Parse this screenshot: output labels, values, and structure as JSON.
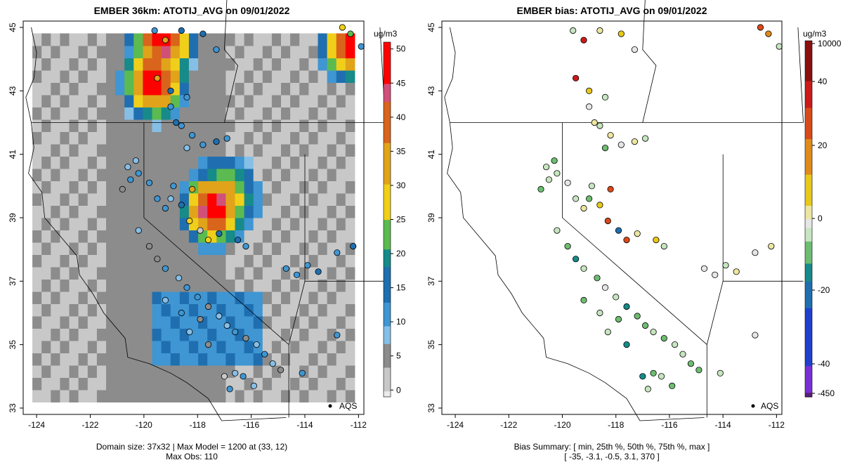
{
  "chart_data": [
    {
      "type": "heatmap",
      "title": "EMBER 36km: ATOTIJ_AVG on 09/01/2022",
      "xlim": [
        -124.5,
        -111.8
      ],
      "ylim": [
        32.8,
        45.2
      ],
      "xticks": [
        "-124",
        "-122",
        "-120",
        "-118",
        "-116",
        "-114",
        "-112"
      ],
      "yticks": [
        "33",
        "35",
        "37",
        "39",
        "41",
        "43",
        "45"
      ],
      "colorbar": {
        "unit": "ug/m3",
        "ticks": [
          "0",
          "5",
          "10",
          "15",
          "20",
          "25",
          "30",
          "35",
          "40",
          "45",
          "50"
        ],
        "range": [
          -1,
          51
        ]
      },
      "legend_label": "AQS",
      "footer_lines": [
        "Domain size: 37x32 | Max Model = 1200 at (33, 12)",
        "Max Obs: 110"
      ],
      "colors": {
        "low": "#e8e8e8",
        "mid_gray": "#9a9a9a",
        "blue": "#4aa3df",
        "teal": "#1b8a8a",
        "green": "#5bb85b",
        "yellow": "#f2d21a",
        "orange": "#e07b1a",
        "red": "#ff0000"
      },
      "hotspots": [
        {
          "lon": -119.3,
          "lat": 44.6,
          "value": 48
        },
        {
          "lon": -119.6,
          "lat": 43.3,
          "value": 50
        },
        {
          "lon": -117.4,
          "lat": 39.3,
          "value": 50
        },
        {
          "lon": -117.0,
          "lat": 39.7,
          "value": 30
        },
        {
          "lon": -112.2,
          "lat": 44.5,
          "value": 50
        }
      ]
    },
    {
      "type": "scatter",
      "title": "EMBER bias: ATOTIJ_AVG on 09/01/2022",
      "xlim": [
        -124.5,
        -111.8
      ],
      "ylim": [
        32.8,
        45.2
      ],
      "xticks": [
        "-124",
        "-122",
        "-120",
        "-118",
        "-116",
        "-114",
        "-112"
      ],
      "yticks": [
        "33",
        "35",
        "37",
        "39",
        "41",
        "43",
        "45"
      ],
      "colorbar": {
        "unit": "ug/m3",
        "ticks": [
          "10000",
          "40",
          "20",
          "0",
          "-20",
          "-40",
          "-450"
        ]
      },
      "legend_label": "AQS",
      "footer_lines": [
        "Bias Summary: [ min, 25th %, 50th %, 75th %, max ]",
        "[ -35,   -3.1,   -0.5,   3.1,   370 ]"
      ]
    }
  ]
}
